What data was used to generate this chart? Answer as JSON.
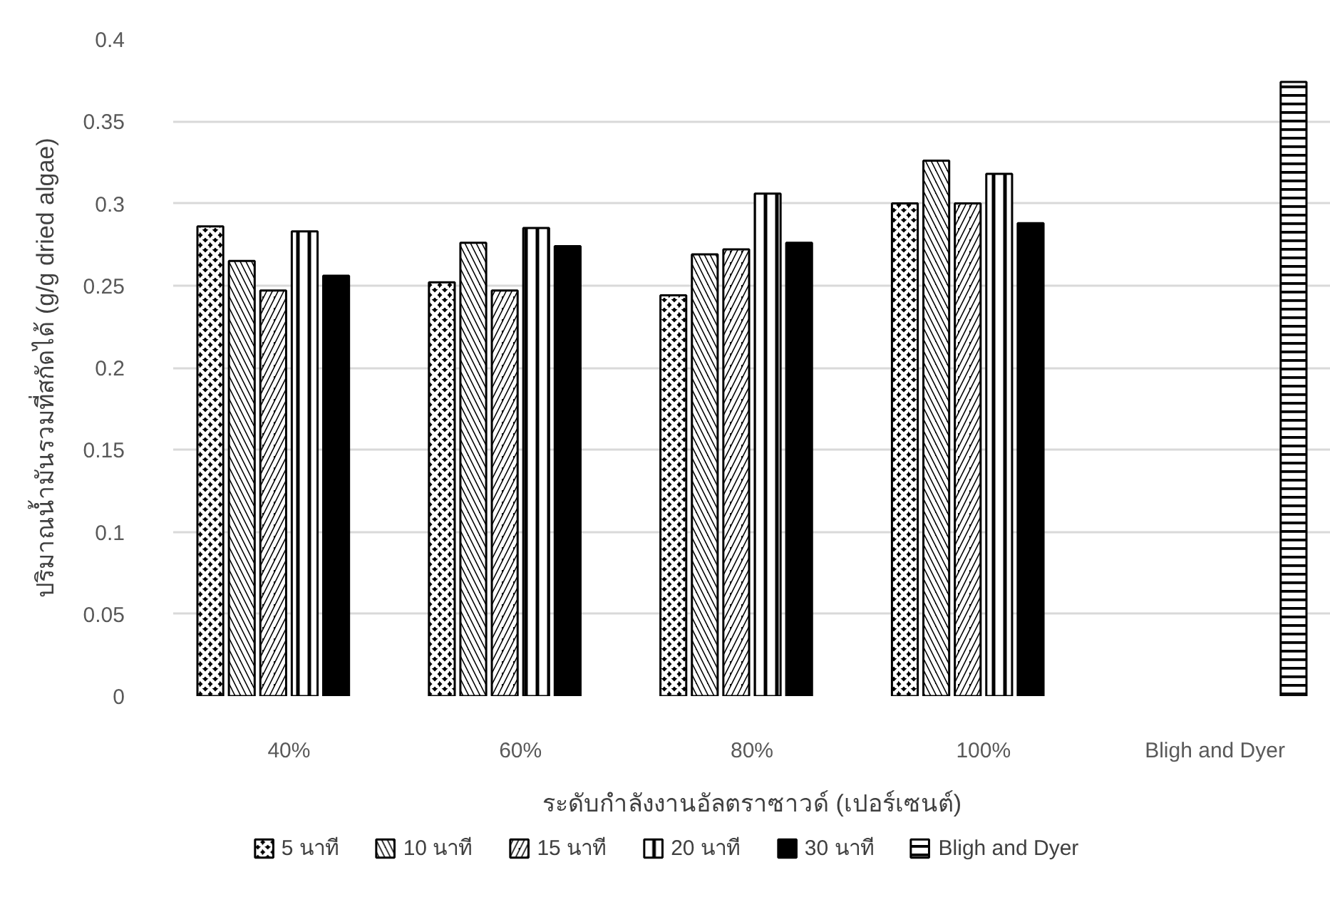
{
  "chart_data": {
    "type": "bar",
    "xlabel": "ระดับกำลังงานอัลตราซาวด์ (เปอร์เซนต์)",
    "ylabel": "ปริมาณน้ำมันรวมที่สกัดได้ (g/g dried algae)",
    "categories": [
      "40%",
      "60%",
      "80%",
      "100%",
      "Bligh and Dyer"
    ],
    "series": [
      {
        "name": "5 นาที",
        "color": "#000000",
        "values": [
          0.286,
          0.252,
          0.244,
          0.3,
          null
        ]
      },
      {
        "name": "10 นาที",
        "color": "#000000",
        "values": [
          0.265,
          0.276,
          0.269,
          0.326,
          null
        ]
      },
      {
        "name": "15 นาที",
        "color": "#000000",
        "values": [
          0.247,
          0.247,
          0.272,
          0.3,
          null
        ]
      },
      {
        "name": "20 นาที",
        "color": "#000000",
        "values": [
          0.283,
          0.285,
          0.306,
          0.318,
          null
        ]
      },
      {
        "name": "30 นาที",
        "color": "#000000",
        "values": [
          0.256,
          0.274,
          0.276,
          0.288,
          null
        ]
      },
      {
        "name": "Bligh and Dyer",
        "color": "#000000",
        "values": [
          null,
          null,
          null,
          null,
          0.374
        ]
      }
    ],
    "ylim": [
      0,
      0.4
    ],
    "yticks": [
      0,
      0.05,
      0.1,
      0.15,
      0.2,
      0.25,
      0.3,
      0.35,
      0.4
    ],
    "grid": "y",
    "legend": "bottom"
  }
}
